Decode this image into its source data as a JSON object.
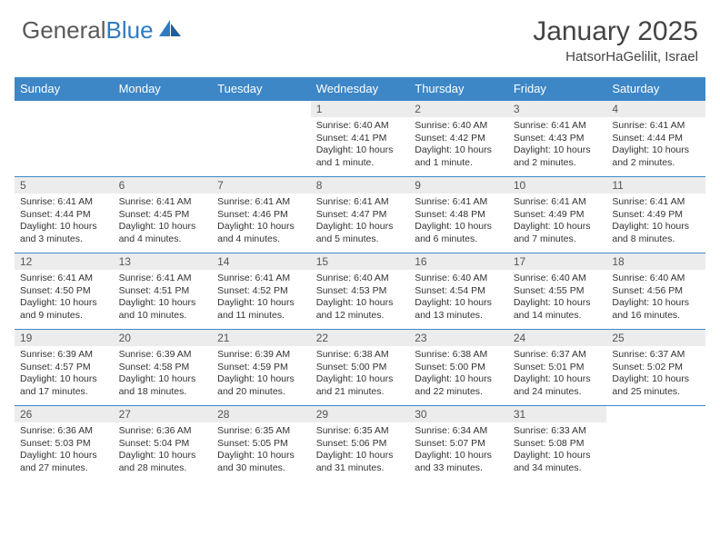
{
  "brand": {
    "part1": "General",
    "part2": "Blue"
  },
  "title": "January 2025",
  "location": "HatsorHaGelilit, Israel",
  "colors": {
    "header_bg": "#3d87c7",
    "header_text": "#ffffff",
    "daynum_bg": "#ececec",
    "border": "#3d87c7",
    "brand_gray": "#5a5a5a",
    "brand_blue": "#2f7bbf"
  },
  "weekdays": [
    "Sunday",
    "Monday",
    "Tuesday",
    "Wednesday",
    "Thursday",
    "Friday",
    "Saturday"
  ],
  "first_weekday_index": 3,
  "days": [
    {
      "n": 1,
      "sunrise": "6:40 AM",
      "sunset": "4:41 PM",
      "daylight": "10 hours and 1 minute."
    },
    {
      "n": 2,
      "sunrise": "6:40 AM",
      "sunset": "4:42 PM",
      "daylight": "10 hours and 1 minute."
    },
    {
      "n": 3,
      "sunrise": "6:41 AM",
      "sunset": "4:43 PM",
      "daylight": "10 hours and 2 minutes."
    },
    {
      "n": 4,
      "sunrise": "6:41 AM",
      "sunset": "4:44 PM",
      "daylight": "10 hours and 2 minutes."
    },
    {
      "n": 5,
      "sunrise": "6:41 AM",
      "sunset": "4:44 PM",
      "daylight": "10 hours and 3 minutes."
    },
    {
      "n": 6,
      "sunrise": "6:41 AM",
      "sunset": "4:45 PM",
      "daylight": "10 hours and 4 minutes."
    },
    {
      "n": 7,
      "sunrise": "6:41 AM",
      "sunset": "4:46 PM",
      "daylight": "10 hours and 4 minutes."
    },
    {
      "n": 8,
      "sunrise": "6:41 AM",
      "sunset": "4:47 PM",
      "daylight": "10 hours and 5 minutes."
    },
    {
      "n": 9,
      "sunrise": "6:41 AM",
      "sunset": "4:48 PM",
      "daylight": "10 hours and 6 minutes."
    },
    {
      "n": 10,
      "sunrise": "6:41 AM",
      "sunset": "4:49 PM",
      "daylight": "10 hours and 7 minutes."
    },
    {
      "n": 11,
      "sunrise": "6:41 AM",
      "sunset": "4:49 PM",
      "daylight": "10 hours and 8 minutes."
    },
    {
      "n": 12,
      "sunrise": "6:41 AM",
      "sunset": "4:50 PM",
      "daylight": "10 hours and 9 minutes."
    },
    {
      "n": 13,
      "sunrise": "6:41 AM",
      "sunset": "4:51 PM",
      "daylight": "10 hours and 10 minutes."
    },
    {
      "n": 14,
      "sunrise": "6:41 AM",
      "sunset": "4:52 PM",
      "daylight": "10 hours and 11 minutes."
    },
    {
      "n": 15,
      "sunrise": "6:40 AM",
      "sunset": "4:53 PM",
      "daylight": "10 hours and 12 minutes."
    },
    {
      "n": 16,
      "sunrise": "6:40 AM",
      "sunset": "4:54 PM",
      "daylight": "10 hours and 13 minutes."
    },
    {
      "n": 17,
      "sunrise": "6:40 AM",
      "sunset": "4:55 PM",
      "daylight": "10 hours and 14 minutes."
    },
    {
      "n": 18,
      "sunrise": "6:40 AM",
      "sunset": "4:56 PM",
      "daylight": "10 hours and 16 minutes."
    },
    {
      "n": 19,
      "sunrise": "6:39 AM",
      "sunset": "4:57 PM",
      "daylight": "10 hours and 17 minutes."
    },
    {
      "n": 20,
      "sunrise": "6:39 AM",
      "sunset": "4:58 PM",
      "daylight": "10 hours and 18 minutes."
    },
    {
      "n": 21,
      "sunrise": "6:39 AM",
      "sunset": "4:59 PM",
      "daylight": "10 hours and 20 minutes."
    },
    {
      "n": 22,
      "sunrise": "6:38 AM",
      "sunset": "5:00 PM",
      "daylight": "10 hours and 21 minutes."
    },
    {
      "n": 23,
      "sunrise": "6:38 AM",
      "sunset": "5:00 PM",
      "daylight": "10 hours and 22 minutes."
    },
    {
      "n": 24,
      "sunrise": "6:37 AM",
      "sunset": "5:01 PM",
      "daylight": "10 hours and 24 minutes."
    },
    {
      "n": 25,
      "sunrise": "6:37 AM",
      "sunset": "5:02 PM",
      "daylight": "10 hours and 25 minutes."
    },
    {
      "n": 26,
      "sunrise": "6:36 AM",
      "sunset": "5:03 PM",
      "daylight": "10 hours and 27 minutes."
    },
    {
      "n": 27,
      "sunrise": "6:36 AM",
      "sunset": "5:04 PM",
      "daylight": "10 hours and 28 minutes."
    },
    {
      "n": 28,
      "sunrise": "6:35 AM",
      "sunset": "5:05 PM",
      "daylight": "10 hours and 30 minutes."
    },
    {
      "n": 29,
      "sunrise": "6:35 AM",
      "sunset": "5:06 PM",
      "daylight": "10 hours and 31 minutes."
    },
    {
      "n": 30,
      "sunrise": "6:34 AM",
      "sunset": "5:07 PM",
      "daylight": "10 hours and 33 minutes."
    },
    {
      "n": 31,
      "sunrise": "6:33 AM",
      "sunset": "5:08 PM",
      "daylight": "10 hours and 34 minutes."
    }
  ],
  "labels": {
    "sunrise": "Sunrise:",
    "sunset": "Sunset:",
    "daylight": "Daylight:"
  }
}
